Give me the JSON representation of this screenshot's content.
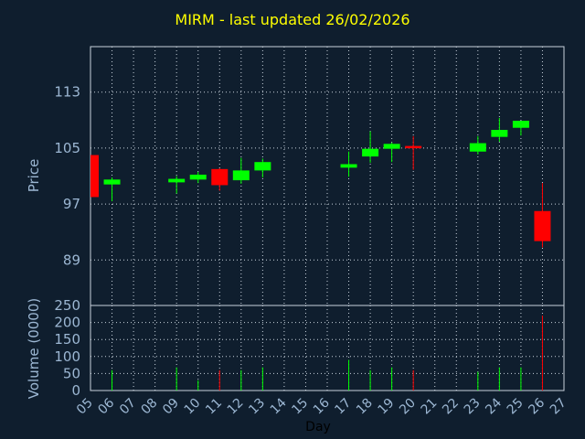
{
  "chart_title": "MIRM - last updated 26/02/2026",
  "colors": {
    "background": "#0f1e2e",
    "title": "#ffff00",
    "axis_text": "#9cb7d3",
    "grid": "#c8d2dc",
    "up": "#00ff00",
    "down": "#ff0000"
  },
  "chart_data": [
    {
      "type": "candlestick",
      "ylabel": "Price",
      "xlabel": "Day",
      "ylim": [
        82.5,
        119.5
      ],
      "yticks": [
        89,
        97,
        105,
        113
      ],
      "grid": true,
      "x_ticks": [
        "05",
        "06",
        "07",
        "08",
        "09",
        "10",
        "11",
        "12",
        "13",
        "14",
        "15",
        "16",
        "17",
        "18",
        "19",
        "20",
        "21",
        "22",
        "23",
        "24",
        "25",
        "26",
        "27"
      ],
      "candles": [
        {
          "day": "05",
          "open": 104.0,
          "high": 104.0,
          "low": 98.0,
          "close": 98.0
        },
        {
          "day": "06",
          "open": 99.8,
          "high": 100.8,
          "low": 97.4,
          "close": 100.5
        },
        {
          "day": "09",
          "open": 100.1,
          "high": 101.0,
          "low": 98.5,
          "close": 100.6
        },
        {
          "day": "10",
          "open": 100.5,
          "high": 101.6,
          "low": 100.0,
          "close": 101.2
        },
        {
          "day": "11",
          "open": 102.0,
          "high": 102.1,
          "low": 98.9,
          "close": 99.7
        },
        {
          "day": "12",
          "open": 100.4,
          "high": 103.6,
          "low": 99.9,
          "close": 101.8
        },
        {
          "day": "13",
          "open": 101.8,
          "high": 103.5,
          "low": 100.8,
          "close": 103.0
        },
        {
          "day": "17",
          "open": 102.2,
          "high": 104.5,
          "low": 100.9,
          "close": 102.7
        },
        {
          "day": "18",
          "open": 103.8,
          "high": 107.4,
          "low": 102.9,
          "close": 104.9
        },
        {
          "day": "19",
          "open": 104.9,
          "high": 105.8,
          "low": 103.0,
          "close": 105.6
        },
        {
          "day": "20",
          "open": 105.3,
          "high": 106.7,
          "low": 101.9,
          "close": 105.1
        },
        {
          "day": "23",
          "open": 104.5,
          "high": 106.7,
          "low": 104.1,
          "close": 105.7
        },
        {
          "day": "24",
          "open": 106.6,
          "high": 109.3,
          "low": 105.9,
          "close": 107.6
        },
        {
          "day": "25",
          "open": 107.9,
          "high": 108.9,
          "low": 106.8,
          "close": 108.9
        },
        {
          "day": "26",
          "open": 96.0,
          "high": 100.0,
          "low": 90.8,
          "close": 91.7
        }
      ]
    },
    {
      "type": "bar",
      "ylabel": "Volume (0000)",
      "ylim": [
        0,
        250
      ],
      "yticks": [
        0,
        50,
        100,
        150,
        200,
        250
      ],
      "grid": true,
      "bars": [
        {
          "day": "06",
          "value": 60,
          "dir": "up"
        },
        {
          "day": "09",
          "value": 68,
          "dir": "up"
        },
        {
          "day": "10",
          "value": 30,
          "dir": "up"
        },
        {
          "day": "11",
          "value": 60,
          "dir": "down"
        },
        {
          "day": "12",
          "value": 60,
          "dir": "up"
        },
        {
          "day": "13",
          "value": 68,
          "dir": "up"
        },
        {
          "day": "17",
          "value": 90,
          "dir": "up"
        },
        {
          "day": "18",
          "value": 60,
          "dir": "up"
        },
        {
          "day": "19",
          "value": 68,
          "dir": "up"
        },
        {
          "day": "20",
          "value": 60,
          "dir": "down"
        },
        {
          "day": "23",
          "value": 55,
          "dir": "up"
        },
        {
          "day": "24",
          "value": 68,
          "dir": "up"
        },
        {
          "day": "25",
          "value": 68,
          "dir": "up"
        },
        {
          "day": "26",
          "value": 220,
          "dir": "down"
        }
      ]
    }
  ]
}
